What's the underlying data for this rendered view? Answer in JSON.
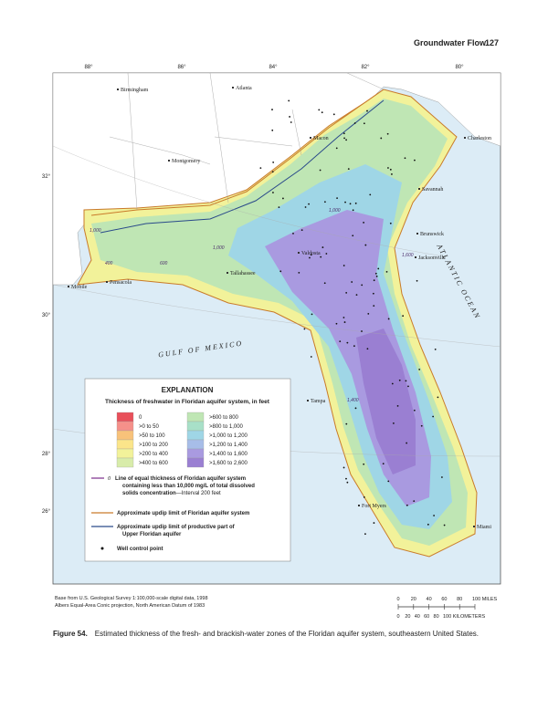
{
  "header": {
    "section": "Groundwater Flow",
    "page": "127"
  },
  "map": {
    "longitudes": [
      "88°",
      "86°",
      "84°",
      "82°",
      "80°"
    ],
    "latitudes": [
      "32°",
      "30°",
      "28°",
      "26°"
    ],
    "places": [
      "Birmingham",
      "Atlanta",
      "Macon",
      "Montgomery",
      "Charleston",
      "Savannah",
      "Brunswick",
      "Jacksonville",
      "Mobile",
      "Pensacola",
      "Tallahassee",
      "Valdosta",
      "Tampa",
      "Fort Myers",
      "Miami"
    ],
    "water_labels": [
      "GULF OF MEXICO",
      "ATLANTIC OCEAN"
    ],
    "contour_labels": [
      "1,000",
      "1,000",
      "1,000",
      "1,600",
      "1,400",
      "400",
      "600"
    ]
  },
  "legend": {
    "title": "EXPLANATION",
    "subtitle": "Thickness of freshwater in Floridan aquifer system, in feet",
    "classes": [
      {
        "label": "0",
        "color": "#e8505a"
      },
      {
        "label": ">0 to 50",
        "color": "#f5908a"
      },
      {
        "label": ">50 to 100",
        "color": "#f8c27a"
      },
      {
        "label": ">100 to 200",
        "color": "#fbe58a"
      },
      {
        "label": ">200 to 400",
        "color": "#f2f29a"
      },
      {
        "label": ">400 to 600",
        "color": "#d8ecaa"
      },
      {
        "label": ">600 to 800",
        "color": "#bfe6b4"
      },
      {
        "label": ">800 to 1,000",
        "color": "#a8e0c8"
      },
      {
        "label": ">1,000 to 1,200",
        "color": "#9fd6e6"
      },
      {
        "label": ">1,200 to 1,400",
        "color": "#a7bde8"
      },
      {
        "label": ">1,400 to 1,600",
        "color": "#a99ae0"
      },
      {
        "label": ">1,600 to 2,600",
        "color": "#9a7fd2"
      }
    ],
    "contour_mark": "0",
    "contour_text": [
      "Line of equal thickness of Floridan aquifer system",
      "containing less than 10,000 mg/L of total dissolved",
      "solids concentration",
      "—Interval 200 feet"
    ],
    "updip": "Approximate updip limit of Floridan aquifer system",
    "productive": [
      "Approximate updip limit of productive part of",
      "Upper Floridan aquifer"
    ],
    "well": "Well control point"
  },
  "source": [
    "Base from U.S. Geological Survey 1:100,000-scale digital data, 1998",
    "Albers Equal-Area Conic projection, North American Datum of 1983"
  ],
  "scale": {
    "miles": [
      "0",
      "20",
      "40",
      "60",
      "80",
      "100 MILES"
    ],
    "kilometers": [
      "0",
      "20",
      "40",
      "60",
      "80",
      "100 KILOMETERS"
    ]
  },
  "caption": {
    "label": "Figure 54.",
    "text": "Estimated thickness of the fresh- and brackish-water zones of the Floridan aquifer system, southeastern United States."
  }
}
